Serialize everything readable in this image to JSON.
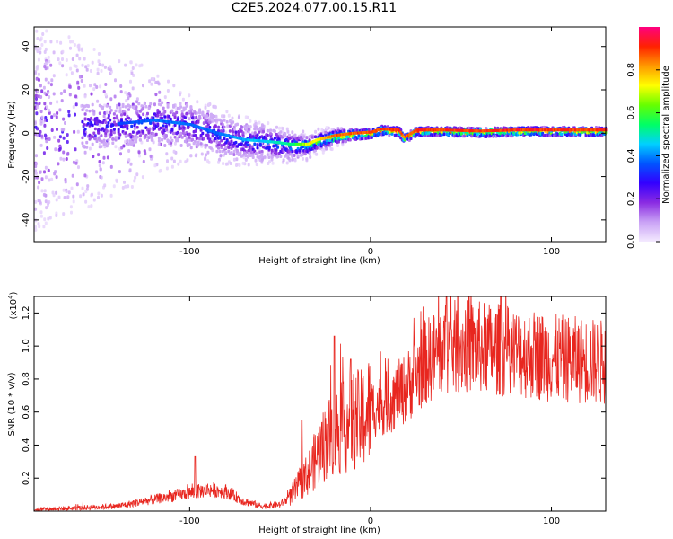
{
  "title": "C2E5.2024.077.00.15.R11",
  "spectrogram": {
    "type": "heatmap",
    "xlabel": "Height of straight line (km)",
    "ylabel": "Frequency (Hz)",
    "xlim": [
      -186,
      130
    ],
    "ylim": [
      -50,
      49
    ],
    "xticks": [
      -100,
      0,
      100
    ],
    "yticks": [
      -40,
      -20,
      0,
      20,
      40
    ],
    "colorbar": {
      "label": "Normalized spectral amplitude",
      "range": [
        0,
        1
      ],
      "ticks": [
        "0.0",
        "0.2",
        "0.4",
        "0.6",
        "0.8"
      ],
      "colors": [
        "#f4eaff",
        "#c9a2f5",
        "#8a2be2",
        "#3300ff",
        "#0055ff",
        "#00d0ff",
        "#00ff66",
        "#66ff00",
        "#ffff00",
        "#ff9900",
        "#ff2200",
        "#ff0080"
      ]
    },
    "signal_track": {
      "x": [
        -145,
        -120,
        -100,
        -85,
        -70,
        -55,
        -45,
        -35,
        -30,
        -20,
        -10,
        0,
        5,
        15,
        18,
        25,
        40,
        60,
        80,
        100,
        130
      ],
      "freq": [
        4,
        6,
        4,
        0,
        -3,
        -4,
        -5,
        -5,
        -3,
        -1,
        0,
        0.5,
        2,
        1.5,
        -2,
        1.5,
        1.5,
        1,
        1.5,
        1.5,
        1.5
      ],
      "amplitude": [
        0.35,
        0.4,
        0.4,
        0.4,
        0.45,
        0.5,
        0.55,
        0.75,
        0.8,
        0.9,
        0.92,
        0.95,
        0.95,
        0.95,
        0.9,
        0.95,
        0.95,
        0.95,
        0.95,
        0.95,
        0.95
      ]
    }
  },
  "chart_data": [
    {
      "type": "heatmap",
      "title": "C2E5.2024.077.00.15.R11",
      "xlabel": "Height of straight line (km)",
      "ylabel": "Frequency (Hz)",
      "xlim": [
        -186,
        130
      ],
      "ylim": [
        -50,
        49
      ],
      "colorbar_label": "Normalized spectral amplitude"
    },
    {
      "type": "line",
      "xlabel": "Height of straight line (km)",
      "ylabel": "SNR (10 * v/v)",
      "yunit": "(x10",
      "yunit_exp": "4",
      "xlim": [
        -186,
        130
      ],
      "ylim": [
        0,
        1.3
      ],
      "xticks": [
        -100,
        0,
        100
      ],
      "yticks": [
        0.2,
        0.4,
        0.6,
        0.8,
        1.0,
        1.2
      ],
      "line_color": "#e8261f",
      "envelope": {
        "x": [
          -186,
          -160,
          -140,
          -120,
          -100,
          -90,
          -80,
          -70,
          -60,
          -50,
          -45,
          -40,
          -35,
          -30,
          -25,
          -20,
          -15,
          -10,
          -5,
          0,
          10,
          20,
          30,
          40,
          50,
          60,
          70,
          80,
          90,
          100,
          110,
          120,
          130
        ],
        "y": [
          0.01,
          0.02,
          0.03,
          0.07,
          0.11,
          0.13,
          0.12,
          0.06,
          0.03,
          0.04,
          0.08,
          0.15,
          0.22,
          0.32,
          0.42,
          0.48,
          0.5,
          0.55,
          0.55,
          0.62,
          0.66,
          0.75,
          0.9,
          0.98,
          1.0,
          0.99,
          0.98,
          0.96,
          0.95,
          0.93,
          0.92,
          0.91,
          0.9
        ]
      },
      "peaks": [
        {
          "x": -97,
          "y": 0.33
        },
        {
          "x": -38,
          "y": 0.55
        },
        {
          "x": -20,
          "y": 1.06
        },
        {
          "x": -11,
          "y": 0.92
        },
        {
          "x": 42,
          "y": 1.3
        },
        {
          "x": 72,
          "y": 1.3
        }
      ]
    }
  ]
}
